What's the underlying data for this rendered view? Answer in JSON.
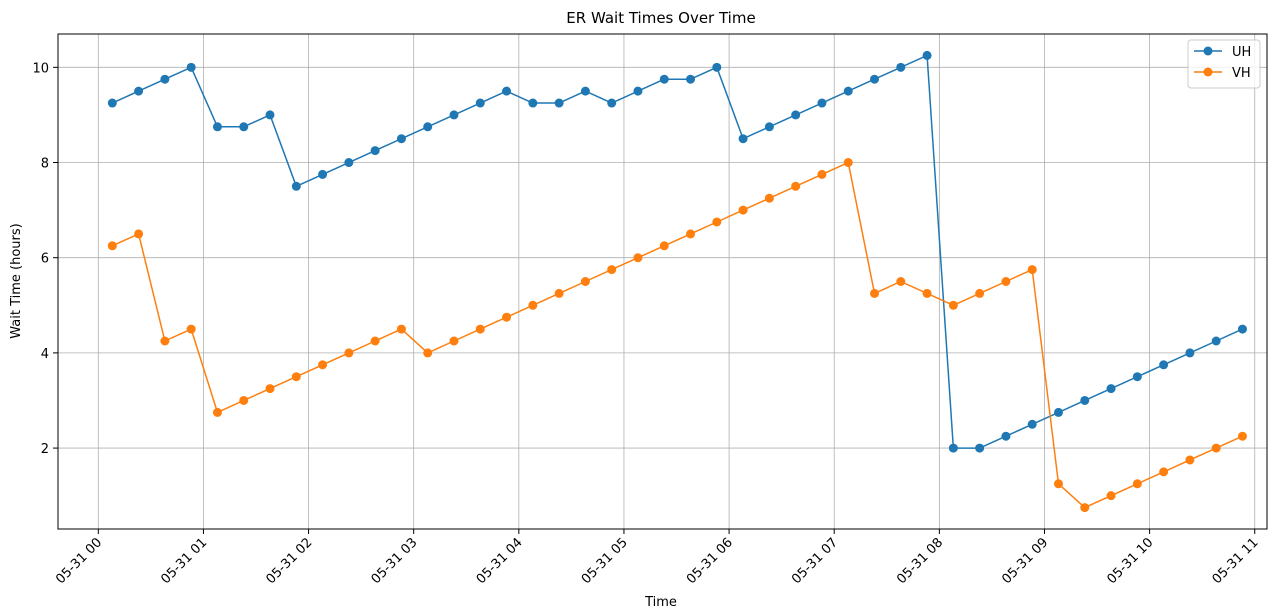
{
  "chart_data": {
    "type": "line",
    "title": "ER Wait Times Over Time",
    "xlabel": "Time",
    "ylabel": "Wait Time (hours)",
    "x_ticks": [
      {
        "x": 0,
        "label": "05-31 00"
      },
      {
        "x": 60,
        "label": "05-31 01"
      },
      {
        "x": 120,
        "label": "05-31 02"
      },
      {
        "x": 180,
        "label": "05-31 03"
      },
      {
        "x": 240,
        "label": "05-31 04"
      },
      {
        "x": 300,
        "label": "05-31 05"
      },
      {
        "x": 360,
        "label": "05-31 06"
      },
      {
        "x": 420,
        "label": "05-31 07"
      },
      {
        "x": 480,
        "label": "05-31 08"
      },
      {
        "x": 540,
        "label": "05-31 09"
      },
      {
        "x": 600,
        "label": "05-31 10"
      },
      {
        "x": 660,
        "label": "05-31 11"
      }
    ],
    "y_ticks": [
      2,
      4,
      6,
      8,
      10
    ],
    "xlim": [
      -23,
      667
    ],
    "ylim": [
      0.3,
      10.7
    ],
    "grid": true,
    "legend_position": "top-right",
    "series": [
      {
        "name": "UH",
        "color": "#1f77b4",
        "x": [
          8,
          23,
          38,
          53,
          68,
          83,
          98,
          113,
          128,
          143,
          158,
          173,
          188,
          203,
          218,
          233,
          248,
          263,
          278,
          293,
          308,
          323,
          338,
          353,
          368,
          383,
          398,
          413,
          428,
          443,
          458,
          473,
          488,
          503,
          518,
          533,
          548,
          563,
          578,
          593,
          608,
          623,
          638,
          653
        ],
        "y": [
          9.25,
          9.5,
          9.75,
          10.0,
          8.75,
          8.75,
          9.0,
          7.5,
          7.75,
          8.0,
          8.25,
          8.5,
          8.75,
          9.0,
          9.25,
          9.5,
          9.25,
          9.25,
          9.5,
          9.25,
          9.5,
          9.75,
          9.75,
          10.0,
          8.5,
          8.75,
          9.0,
          9.25,
          9.5,
          9.75,
          10.0,
          10.25,
          2.0,
          2.0,
          2.25,
          2.5,
          2.75,
          3.0,
          3.25,
          3.5,
          3.75,
          4.0,
          4.25,
          4.5
        ]
      },
      {
        "name": "VH",
        "color": "#ff7f0e",
        "x": [
          8,
          23,
          38,
          53,
          68,
          83,
          98,
          113,
          128,
          143,
          158,
          173,
          188,
          203,
          218,
          233,
          248,
          263,
          278,
          293,
          308,
          323,
          338,
          353,
          368,
          383,
          398,
          413,
          428,
          443,
          458,
          473,
          488,
          503,
          518,
          533,
          548,
          563,
          578,
          593,
          608,
          623,
          638,
          653
        ],
        "y": [
          6.25,
          6.5,
          4.25,
          4.5,
          2.75,
          3.0,
          3.25,
          3.5,
          3.75,
          4.0,
          4.25,
          4.5,
          4.0,
          4.25,
          4.5,
          4.75,
          5.0,
          5.25,
          5.5,
          5.75,
          6.0,
          6.25,
          6.5,
          6.75,
          7.0,
          7.25,
          7.5,
          7.75,
          8.0,
          5.25,
          5.5,
          5.25,
          5.0,
          5.25,
          5.5,
          5.75,
          1.25,
          0.75,
          1.0,
          1.25,
          1.5,
          1.75,
          2.0,
          2.25
        ]
      }
    ]
  }
}
